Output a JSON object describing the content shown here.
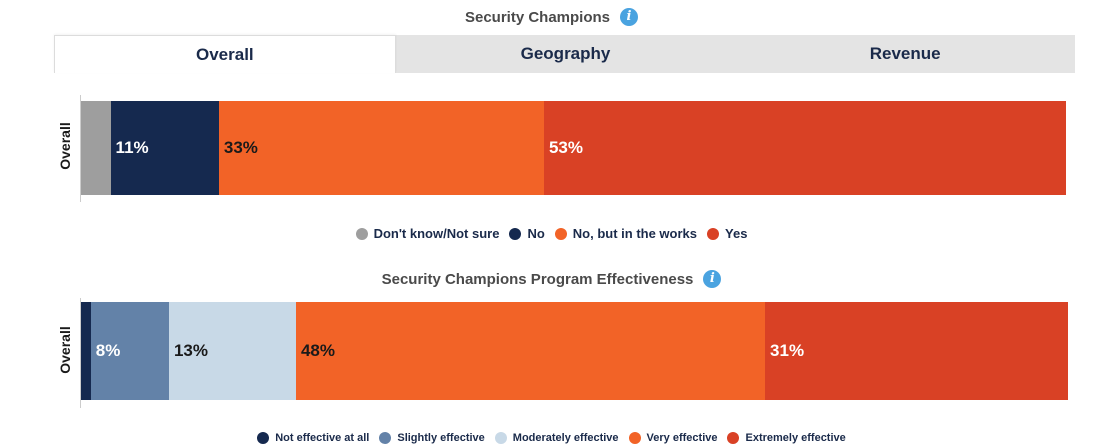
{
  "chart_data": [
    {
      "type": "bar",
      "orientation": "horizontal-stacked",
      "title": "Security Champions",
      "tabs": [
        "Overall",
        "Geography",
        "Revenue"
      ],
      "active_tab": "Overall",
      "categories": [
        "Overall"
      ],
      "xlim": [
        0,
        100
      ],
      "series": [
        {
          "name": "Don't know/Not sure",
          "values": [
            3
          ],
          "label": "",
          "color": "#9e9e9e",
          "label_color": "#ffffff"
        },
        {
          "name": "No",
          "values": [
            11
          ],
          "label": "11%",
          "color": "#15294f",
          "label_color": "#ffffff"
        },
        {
          "name": "No, but in the works",
          "values": [
            33
          ],
          "label": "33%",
          "color": "#f26327",
          "label_color": "#1a1a1a"
        },
        {
          "name": "Yes",
          "values": [
            53
          ],
          "label": "53%",
          "color": "#d94125",
          "label_color": "#ffffff"
        }
      ],
      "legend": "bottom-center"
    },
    {
      "type": "bar",
      "orientation": "horizontal-stacked",
      "title": "Security Champions Program Effectiveness",
      "categories": [
        "Overall"
      ],
      "xlim": [
        0,
        100
      ],
      "series": [
        {
          "name": "Not effective at all",
          "values": [
            1
          ],
          "label": "",
          "color": "#15294f",
          "label_color": "#ffffff"
        },
        {
          "name": "Slightly effective",
          "values": [
            8
          ],
          "label": "8%",
          "color": "#6382a8",
          "label_color": "#ffffff"
        },
        {
          "name": "Moderately effective",
          "values": [
            13
          ],
          "label": "13%",
          "color": "#c8d9e7",
          "label_color": "#1a1a1a"
        },
        {
          "name": "Very effective",
          "values": [
            48
          ],
          "label": "48%",
          "color": "#f26327",
          "label_color": "#1a1a1a"
        },
        {
          "name": "Extremely effective",
          "values": [
            31
          ],
          "label": "31%",
          "color": "#d94125",
          "label_color": "#ffffff"
        }
      ],
      "legend": "bottom-center"
    }
  ]
}
